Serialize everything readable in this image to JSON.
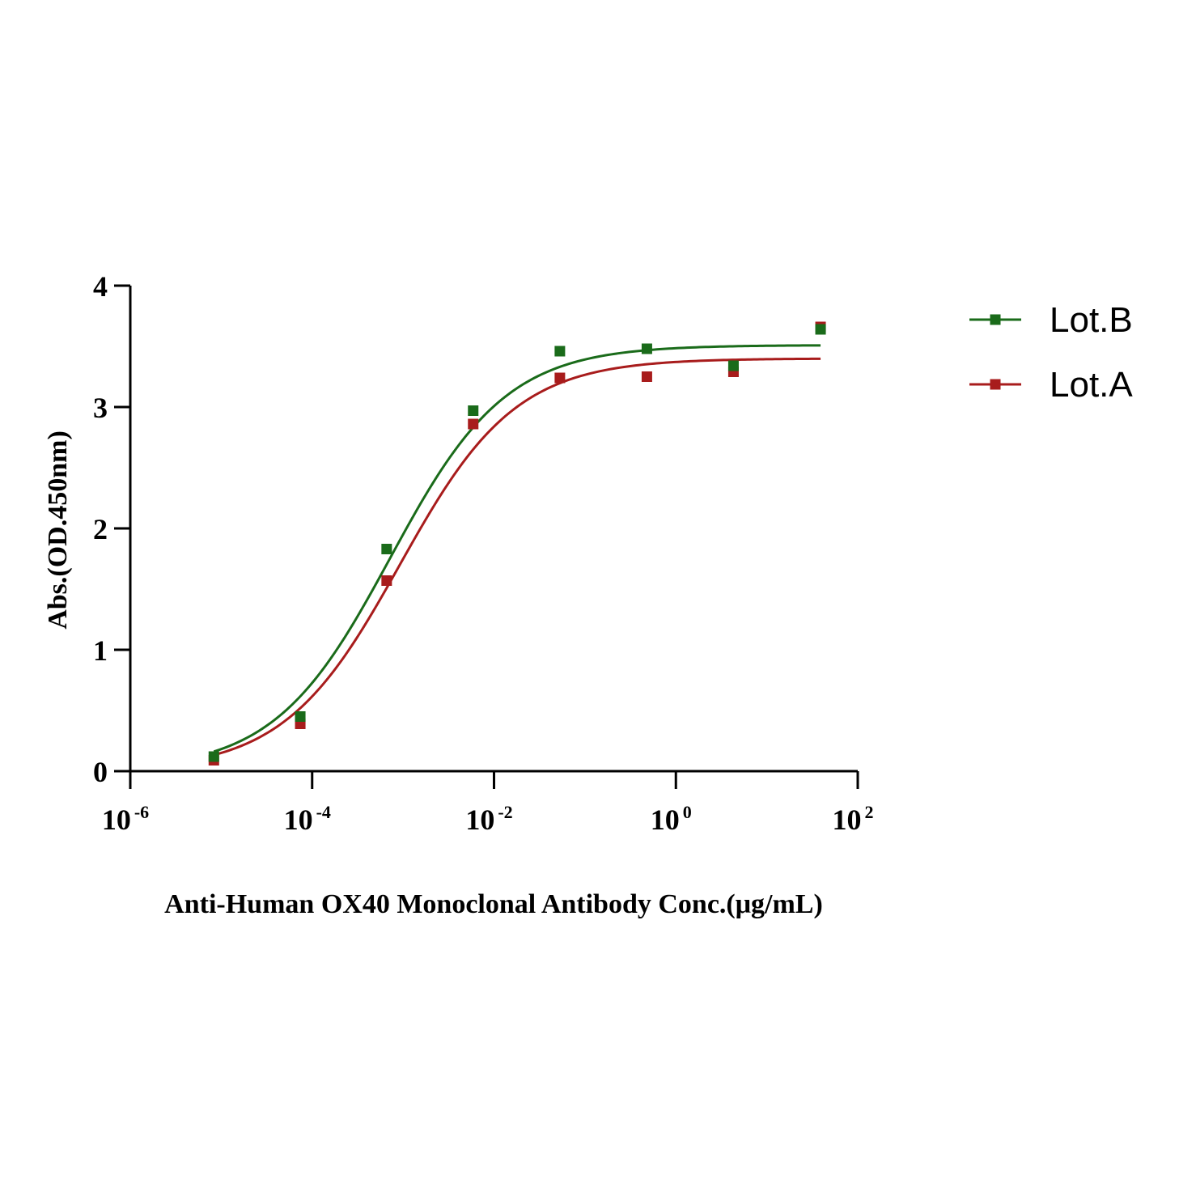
{
  "chart_data": {
    "type": "scatter",
    "xlabel": "Anti-Human OX40 Monoclonal Antibody Conc.(μg/mL)",
    "ylabel": "Abs.(OD.450nm)",
    "x_scale": "log10",
    "xlim": [
      1e-06,
      100
    ],
    "ylim": [
      0,
      4
    ],
    "x_ticks": [
      {
        "base": "10",
        "exp": "-6",
        "value": 1e-06
      },
      {
        "base": "10",
        "exp": "-4",
        "value": 0.0001
      },
      {
        "base": "10",
        "exp": "-2",
        "value": 0.01
      },
      {
        "base": "10",
        "exp": "0",
        "value": 1
      },
      {
        "base": "10",
        "exp": "2",
        "value": 100
      }
    ],
    "y_ticks": [
      "0",
      "1",
      "2",
      "3",
      "4"
    ],
    "grid": false,
    "legend_position": "top-right",
    "series": [
      {
        "name": "Lot.B",
        "color": "#1a6b1a",
        "x": [
          8.3e-06,
          7.4e-05,
          0.00066,
          0.0059,
          0.053,
          0.48,
          4.3,
          39
        ],
        "y": [
          0.12,
          0.45,
          1.83,
          2.97,
          3.46,
          3.48,
          3.34,
          3.64
        ],
        "fit": {
          "bottom": 0.0,
          "top": 3.51,
          "ec50": 0.00072,
          "hill": 0.68
        }
      },
      {
        "name": "Lot.A",
        "color": "#a81c1c",
        "x": [
          8.3e-06,
          7.4e-05,
          0.00066,
          0.0059,
          0.053,
          0.48,
          4.3,
          39
        ],
        "y": [
          0.09,
          0.39,
          1.57,
          2.86,
          3.24,
          3.25,
          3.29,
          3.66
        ],
        "fit": {
          "bottom": 0.0,
          "top": 3.4,
          "ec50": 0.00092,
          "hill": 0.68
        }
      }
    ]
  }
}
